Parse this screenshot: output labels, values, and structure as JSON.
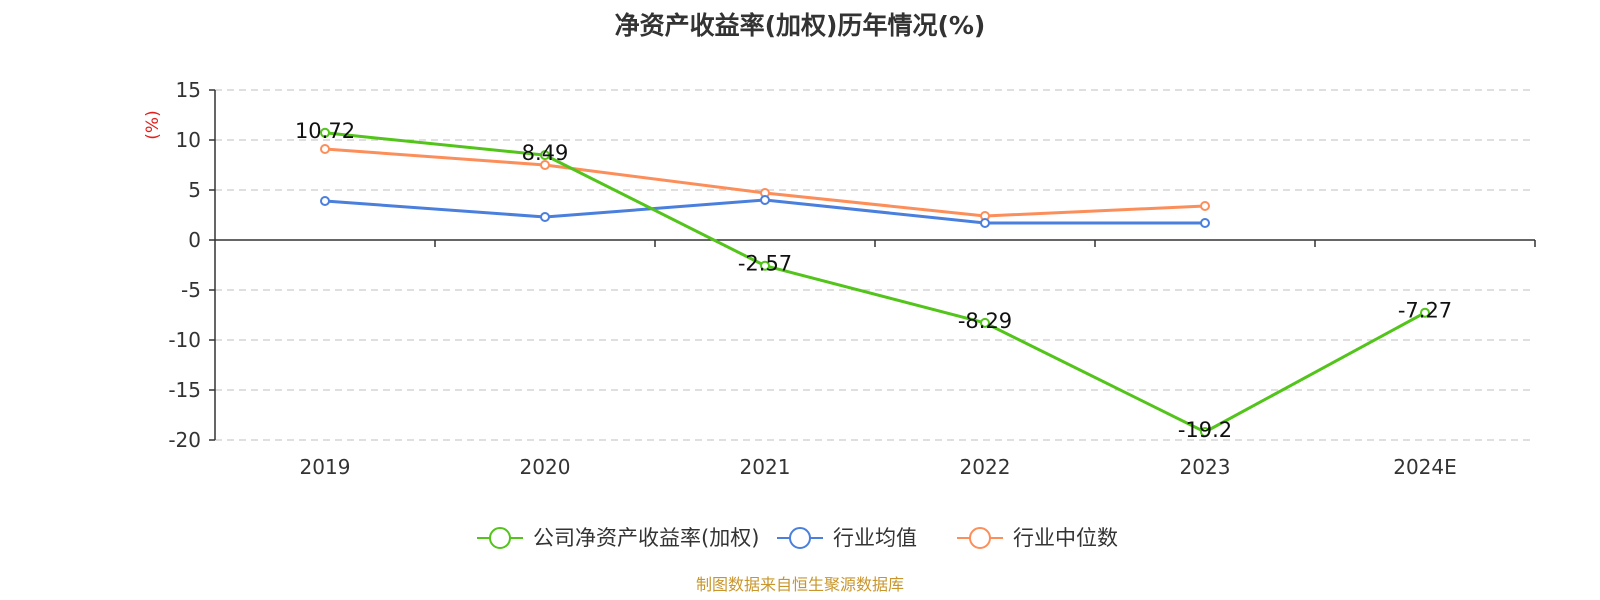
{
  "chart_data": {
    "type": "line",
    "title": "净资产收益率(加权)历年情况(%)",
    "ylabel": "(%)",
    "xlabel": "",
    "categories": [
      "2019",
      "2020",
      "2021",
      "2022",
      "2023",
      "2024E"
    ],
    "ylim": [
      -20,
      15
    ],
    "yticks": [
      15,
      10,
      5,
      0,
      -5,
      -10,
      -15,
      -20
    ],
    "grid": true,
    "legend_position": "bottom",
    "series": [
      {
        "name": "公司净资产收益率(加权)",
        "color": "#52c41a",
        "values": [
          10.72,
          8.49,
          -2.57,
          -8.29,
          -19.2,
          -7.27
        ],
        "labels": [
          "10.72",
          "8.49",
          "-2.57",
          "-8.29",
          "-19.2",
          "-7.27"
        ]
      },
      {
        "name": "行业均值",
        "color": "#4a7fdd",
        "values": [
          3.9,
          2.3,
          4.0,
          1.7,
          1.7,
          null
        ]
      },
      {
        "name": "行业中位数",
        "color": "#fc8e5a",
        "values": [
          9.1,
          7.5,
          4.7,
          2.4,
          3.4,
          null
        ]
      }
    ]
  },
  "footer": "制图数据来自恒生聚源数据库",
  "colors": {
    "ylabel": "#e0201c",
    "footer": "#c9962c",
    "axis": "#333333",
    "grid": "#cccccc"
  }
}
